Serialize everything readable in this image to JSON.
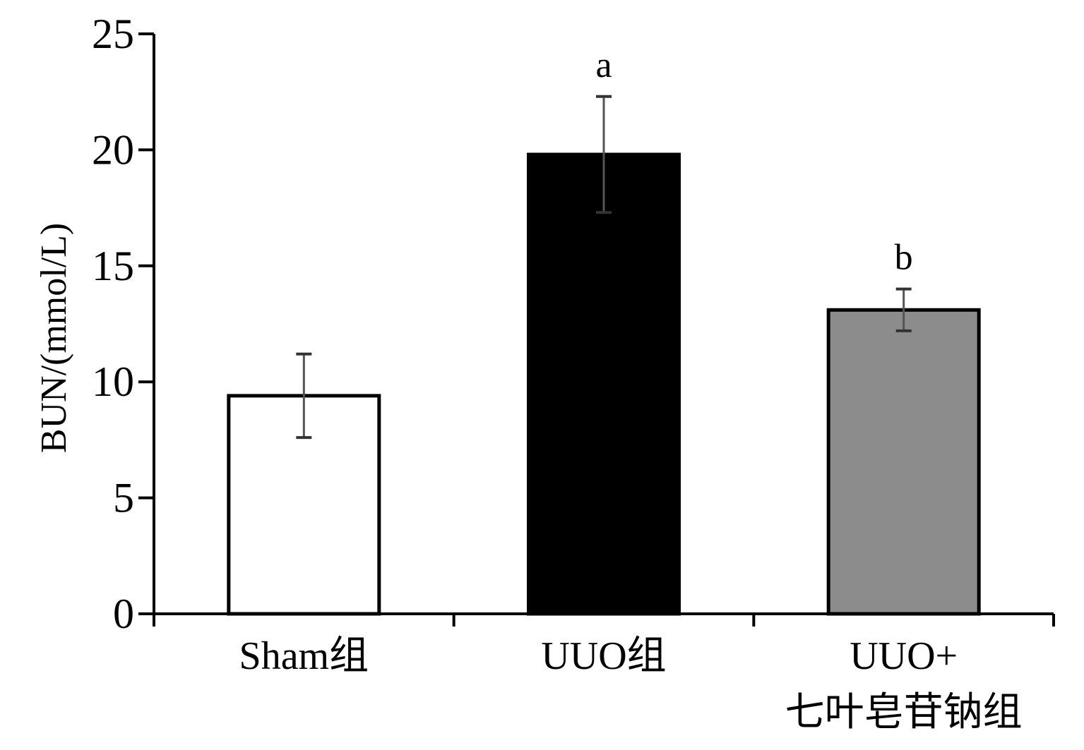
{
  "chart_data": {
    "type": "bar",
    "ylabel": "BUN/(mmol/L)",
    "ylim": [
      0,
      25
    ],
    "yticks": [
      "0",
      "5",
      "10",
      "15",
      "20",
      "25"
    ],
    "categories": [
      [
        "Sham组"
      ],
      [
        "UUO组"
      ],
      [
        "UUO+",
        "七叶皂苷钠组"
      ]
    ],
    "values": [
      9.4,
      19.8,
      13.1
    ],
    "errors": [
      1.8,
      2.5,
      0.9
    ],
    "annotations": [
      "",
      "a",
      "b"
    ],
    "bar_colors": [
      "#ffffff",
      "#000000",
      "#8c8c8c"
    ],
    "bar_edge_color": "#000000",
    "errorbar_color": "#555555",
    "grid": false,
    "legend": "none"
  }
}
